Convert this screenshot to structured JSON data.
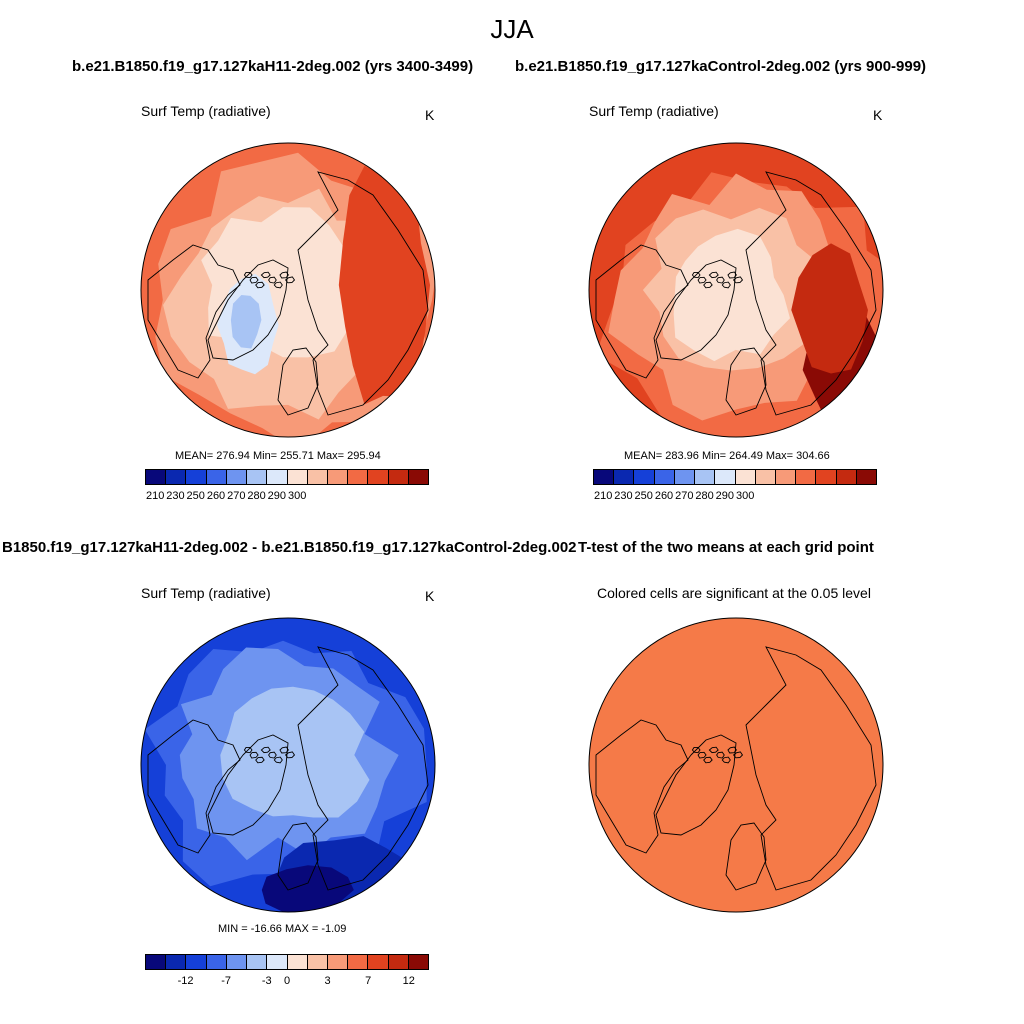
{
  "title": "JJA",
  "column_headers": [
    "b.e21.B1850.f19_g17.127kaH11-2deg.002 (yrs 3400-3499)",
    "b.e21.B1850.f19_g17.127kaControl-2deg.002 (yrs 900-999)"
  ],
  "diff_header": "B1850.f19_g17.127kaH11-2deg.002 - b.e21.B1850.f19_g17.127kaControl-2deg.002",
  "ttest_header": "T-test of the two means at each grid point",
  "panels": [
    {
      "variable": "Surf Temp (radiative)",
      "units": "K",
      "stats": "MEAN= 276.94  Min= 255.71  Max= 295.94"
    },
    {
      "variable": "Surf Temp (radiative)",
      "units": "K",
      "stats": "MEAN= 283.96  Min= 264.49  Max= 304.66"
    },
    {
      "variable": "Surf Temp (radiative)",
      "units": "K",
      "stats": "MIN = -16.66 MAX =  -1.09"
    },
    {
      "variable": "Colored cells are significant at the 0.05 level"
    }
  ],
  "colorbar_abs": {
    "colors": [
      "#08087a",
      "#0a28b0",
      "#1540d8",
      "#3a64e8",
      "#6e94f0",
      "#a8c4f4",
      "#dce8fa",
      "#fbe2d4",
      "#f9c1a6",
      "#f79a78",
      "#f26a44",
      "#e14320",
      "#c42a10",
      "#8a0a05"
    ],
    "ticks": [
      "210",
      "230",
      "250",
      "260",
      "270",
      "280",
      "290",
      "300"
    ]
  },
  "colorbar_diff": {
    "colors": [
      "#08087a",
      "#0a28b0",
      "#1540d8",
      "#3a64e8",
      "#6e94f0",
      "#a8c4f4",
      "#dce8fa",
      "#fbe2d4",
      "#f9c1a6",
      "#f79a78",
      "#f26a44",
      "#e14320",
      "#c42a10",
      "#8a0a05"
    ],
    "ticks": [
      "-12",
      "-7",
      "-3",
      "0",
      "3",
      "7",
      "12"
    ]
  },
  "map_colors": {
    "h11": [
      "#f79a78",
      "#f9c1a6",
      "#fbe2d4",
      "#dce8fa",
      "#a8c4f4",
      "#f26a44",
      "#e14320"
    ],
    "control": [
      "#e14320",
      "#c42a10",
      "#f26a44",
      "#f79a78",
      "#f9c1a6",
      "#fbe2d4",
      "#8a0a05"
    ],
    "diff": [
      "#1540d8",
      "#3a64e8",
      "#6e94f0",
      "#a8c4f4",
      "#0a28b0",
      "#08087a"
    ],
    "ttest": "#f57a48",
    "coast": "#000000"
  }
}
